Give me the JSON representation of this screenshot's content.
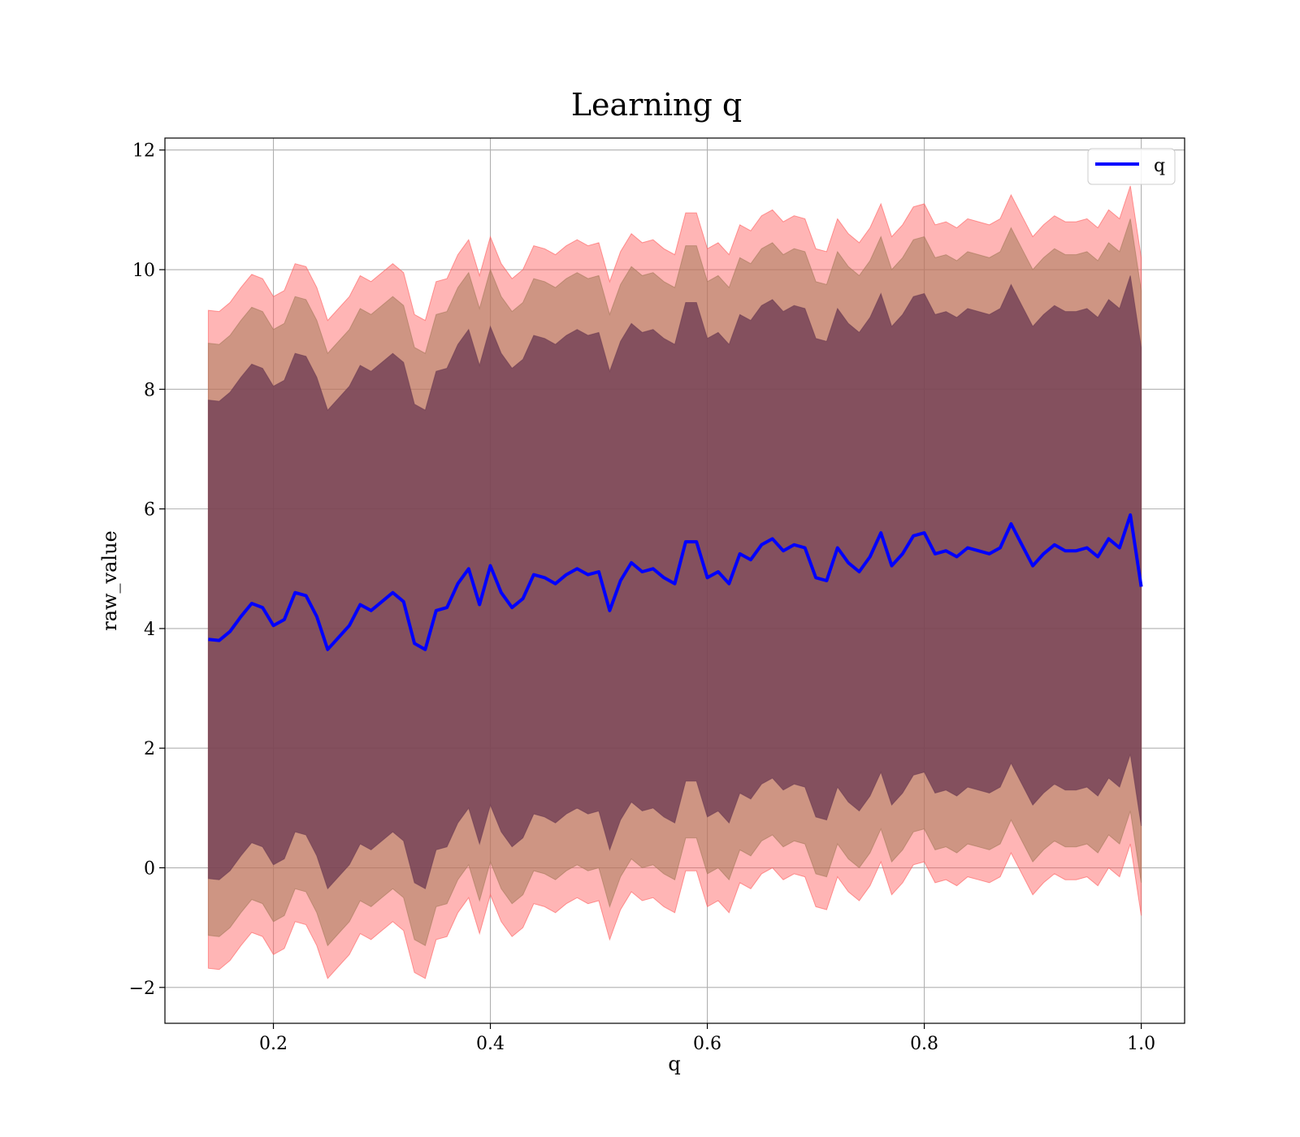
{
  "chart_data": {
    "type": "area",
    "title": "Learning q",
    "xlabel": "q",
    "ylabel": "raw_value",
    "xlim": [
      0.1,
      1.04
    ],
    "ylim": [
      -2.6,
      12.2
    ],
    "x_ticks": [
      0.2,
      0.4,
      0.6,
      0.8,
      1.0
    ],
    "x_tick_labels": [
      "0.2",
      "0.4",
      "0.6",
      "0.8",
      "1.0"
    ],
    "y_ticks": [
      -2,
      0,
      2,
      4,
      6,
      8,
      10,
      12
    ],
    "y_tick_labels": [
      "−2",
      "0",
      "2",
      "4",
      "6",
      "8",
      "10",
      "12"
    ],
    "grid": true,
    "legend": {
      "position": "top-right",
      "entries": [
        {
          "label": "q",
          "color": "#0000ff"
        }
      ]
    },
    "colors": {
      "line": "#0000ff",
      "band_3sigma": "#ff5a5a",
      "band_2sigma": "#a57a5a",
      "band_1sigma": "#6b3a52"
    },
    "x": [
      0.14,
      0.15,
      0.16,
      0.17,
      0.18,
      0.19,
      0.2,
      0.21,
      0.22,
      0.23,
      0.24,
      0.25,
      0.26,
      0.27,
      0.28,
      0.29,
      0.3,
      0.31,
      0.32,
      0.33,
      0.34,
      0.35,
      0.36,
      0.37,
      0.38,
      0.39,
      0.4,
      0.41,
      0.42,
      0.43,
      0.44,
      0.45,
      0.46,
      0.47,
      0.48,
      0.49,
      0.5,
      0.51,
      0.52,
      0.53,
      0.54,
      0.55,
      0.56,
      0.57,
      0.58,
      0.59,
      0.6,
      0.61,
      0.62,
      0.63,
      0.64,
      0.65,
      0.66,
      0.67,
      0.68,
      0.69,
      0.7,
      0.71,
      0.72,
      0.73,
      0.74,
      0.75,
      0.76,
      0.77,
      0.78,
      0.79,
      0.8,
      0.81,
      0.82,
      0.83,
      0.84,
      0.85,
      0.86,
      0.87,
      0.88,
      0.89,
      0.9,
      0.91,
      0.92,
      0.93,
      0.94,
      0.95,
      0.96,
      0.97,
      0.98,
      0.99,
      1.0
    ],
    "series": [
      {
        "name": "q",
        "values": [
          3.82,
          3.8,
          3.95,
          4.2,
          4.42,
          4.35,
          4.05,
          4.15,
          4.6,
          4.55,
          4.2,
          3.65,
          3.85,
          4.05,
          4.4,
          4.3,
          4.45,
          4.6,
          4.45,
          3.75,
          3.65,
          4.3,
          4.35,
          4.75,
          5.0,
          4.4,
          5.05,
          4.6,
          4.35,
          4.5,
          4.9,
          4.85,
          4.75,
          4.9,
          5.0,
          4.9,
          4.95,
          4.3,
          4.8,
          5.1,
          4.95,
          5.0,
          4.85,
          4.75,
          5.45,
          5.45,
          4.85,
          4.95,
          4.75,
          5.25,
          5.15,
          5.4,
          5.5,
          5.3,
          5.4,
          5.35,
          4.85,
          4.8,
          5.35,
          5.1,
          4.95,
          5.2,
          5.6,
          5.05,
          5.25,
          5.55,
          5.6,
          5.25,
          5.3,
          5.2,
          5.35,
          5.3,
          5.25,
          5.35,
          5.75,
          5.4,
          5.05,
          5.25,
          5.4,
          5.3,
          5.3,
          5.35,
          5.2,
          5.5,
          5.35,
          5.9,
          4.7
        ]
      }
    ]
  }
}
